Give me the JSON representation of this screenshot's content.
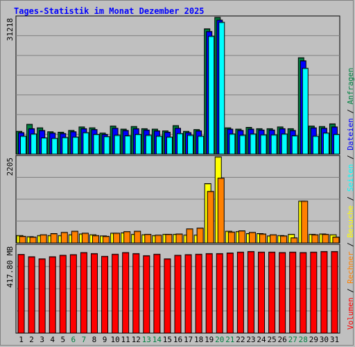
{
  "title": "Tages-Statistik im Monat Dezember 2025",
  "legend": [
    {
      "label": "Volumen",
      "color": "#ff0000"
    },
    {
      "label": "Rechner",
      "color": "#ff8000"
    },
    {
      "label": "Besuche",
      "color": "#ffff00"
    },
    {
      "label": "Seiten",
      "color": "#00ffff"
    },
    {
      "label": "Dateien",
      "color": "#0000ff"
    },
    {
      "label": "Anfragen",
      "color": "#008040"
    }
  ],
  "legend_separator": " / ",
  "chart_data": [
    {
      "type": "bar",
      "panel": "top",
      "ymax_label": "31218",
      "ymax": 31218,
      "categories": [
        "1",
        "2",
        "3",
        "4",
        "5",
        "6",
        "7",
        "8",
        "9",
        "10",
        "11",
        "12",
        "13",
        "14",
        "15",
        "16",
        "17",
        "18",
        "19",
        "20",
        "21",
        "22",
        "23",
        "24",
        "25",
        "26",
        "27",
        "28",
        "29",
        "30",
        "31"
      ],
      "weekend_days": [
        6,
        7,
        13,
        14,
        20,
        21,
        27,
        28
      ],
      "series": [
        {
          "name": "Anfragen",
          "color": "#008040",
          "values": [
            5200,
            6800,
            6000,
            5100,
            5000,
            5400,
            6200,
            6000,
            4800,
            6400,
            5700,
            6300,
            5800,
            5700,
            5300,
            6500,
            5200,
            5600,
            28600,
            31218,
            6000,
            5700,
            6100,
            5800,
            5800,
            6200,
            5800,
            22000,
            6400,
            6300,
            6900
          ]
        },
        {
          "name": "Dateien",
          "color": "#0000ff",
          "values": [
            4900,
            5800,
            5400,
            4800,
            4700,
            5100,
            5800,
            5600,
            4500,
            5900,
            5400,
            5800,
            5500,
            5300,
            5000,
            5900,
            4900,
            5300,
            28000,
            30600,
            5700,
            5400,
            5700,
            5500,
            5500,
            5800,
            5400,
            21300,
            6000,
            5900,
            6200
          ]
        },
        {
          "name": "Seiten",
          "color": "#00ffff",
          "values": [
            4100,
            4600,
            3700,
            3600,
            3800,
            3900,
            4900,
            4500,
            4000,
            4300,
            4200,
            4500,
            4300,
            4100,
            3900,
            4700,
            4300,
            4100,
            26900,
            30100,
            4600,
            4300,
            4600,
            4400,
            4400,
            4600,
            4200,
            19600,
            4100,
            4800,
            4500
          ]
        }
      ]
    },
    {
      "type": "bar",
      "panel": "middle",
      "ymax_label": "2205",
      "ymax": 2205,
      "series": [
        {
          "name": "Besuche",
          "color": "#ffff00",
          "values": [
            190,
            160,
            190,
            190,
            190,
            210,
            230,
            210,
            180,
            250,
            260,
            220,
            210,
            190,
            220,
            220,
            200,
            200,
            1520,
            2205,
            300,
            290,
            240,
            240,
            180,
            190,
            220,
            1070,
            220,
            230,
            210
          ]
        },
        {
          "name": "Rechner",
          "color": "#ff8000",
          "values": [
            170,
            150,
            210,
            240,
            270,
            300,
            250,
            190,
            170,
            250,
            290,
            300,
            220,
            200,
            220,
            230,
            360,
            380,
            1320,
            1660,
            280,
            310,
            270,
            230,
            210,
            180,
            130,
            1070,
            210,
            220,
            150
          ]
        }
      ]
    },
    {
      "type": "bar",
      "panel": "bottom",
      "ymax_label": "417.80 MB",
      "ymax": 417.8,
      "series": [
        {
          "name": "Volumen",
          "color": "#ff0000",
          "values": [
            376,
            365,
            355,
            365,
            372,
            375,
            385,
            380,
            367,
            377,
            385,
            380,
            370,
            377,
            355,
            372,
            375,
            377,
            380,
            380,
            383,
            387,
            390,
            387,
            387,
            385,
            387,
            385,
            387,
            390,
            390
          ]
        }
      ]
    }
  ]
}
